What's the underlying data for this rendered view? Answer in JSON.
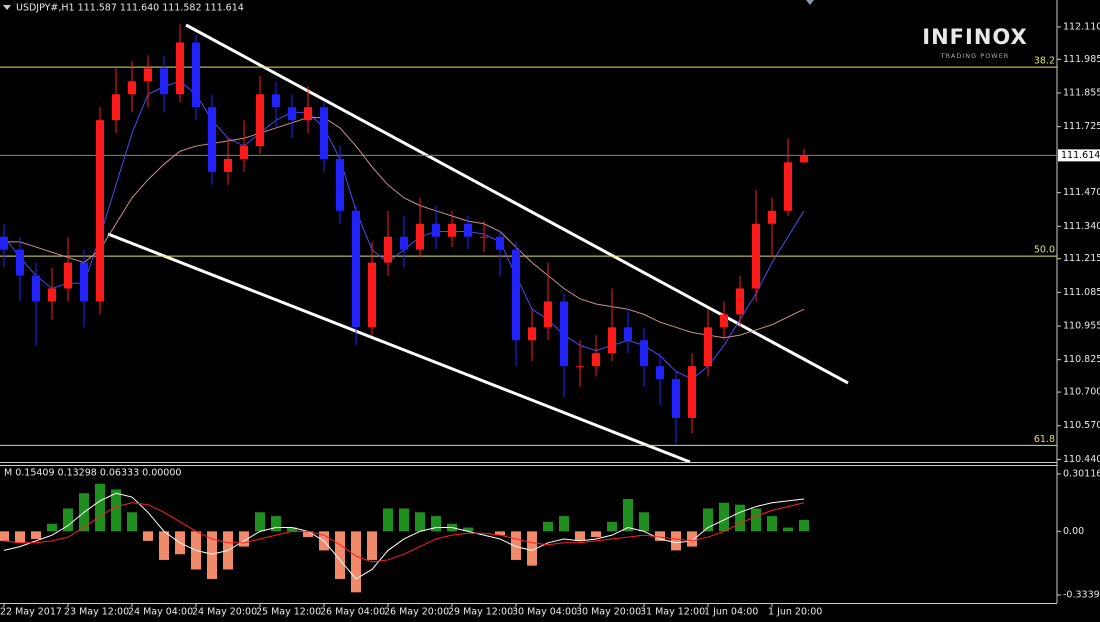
{
  "brand": {
    "name": "INFINOX",
    "tagline": "TRADING POWER"
  },
  "chart_data": [
    {
      "type": "candlestick",
      "title": "USDJPY#,H1 111.587 111.640 111.582 111.614",
      "categories": [
        "22 May 2017",
        null,
        null,
        null,
        "23 May 12:00",
        null,
        null,
        null,
        "24 May 04:00",
        null,
        null,
        null,
        "24 May 20:00",
        null,
        null,
        null,
        "25 May 12:00",
        null,
        null,
        null,
        "26 May 04:00",
        null,
        null,
        null,
        "26 May 20:00",
        null,
        null,
        null,
        "29 May 12:00",
        null,
        null,
        null,
        "30 May 04:00",
        null,
        null,
        null,
        "30 May 20:00",
        null,
        null,
        null,
        "31 May 12:00",
        null,
        null,
        null,
        "1 Jun 04:00",
        null,
        null,
        null,
        "1 Jun 20:00",
        null,
        null
      ],
      "ohlc": [
        [
          111.3,
          111.35,
          111.18,
          111.25
        ],
        [
          111.25,
          111.3,
          111.05,
          111.15
        ],
        [
          111.15,
          111.2,
          110.88,
          111.05
        ],
        [
          111.05,
          111.18,
          110.98,
          111.1
        ],
        [
          111.1,
          111.3,
          111.05,
          111.2
        ],
        [
          111.2,
          111.25,
          110.95,
          111.05
        ],
        [
          111.05,
          111.8,
          111.0,
          111.75
        ],
        [
          111.75,
          111.95,
          111.7,
          111.85
        ],
        [
          111.85,
          111.98,
          111.78,
          111.9
        ],
        [
          111.9,
          112.0,
          111.8,
          111.95
        ],
        [
          111.95,
          112.0,
          111.78,
          111.85
        ],
        [
          111.85,
          112.12,
          111.82,
          112.05
        ],
        [
          112.05,
          112.08,
          111.75,
          111.8
        ],
        [
          111.8,
          111.85,
          111.5,
          111.55
        ],
        [
          111.55,
          111.68,
          111.5,
          111.6
        ],
        [
          111.6,
          111.75,
          111.55,
          111.65
        ],
        [
          111.65,
          111.92,
          111.62,
          111.85
        ],
        [
          111.85,
          111.9,
          111.72,
          111.8
        ],
        [
          111.8,
          111.85,
          111.68,
          111.75
        ],
        [
          111.75,
          111.88,
          111.7,
          111.8
        ],
        [
          111.8,
          111.82,
          111.55,
          111.6
        ],
        [
          111.6,
          111.65,
          111.35,
          111.4
        ],
        [
          111.4,
          111.42,
          110.88,
          110.95
        ],
        [
          110.95,
          111.28,
          110.92,
          111.2
        ],
        [
          111.2,
          111.4,
          111.15,
          111.3
        ],
        [
          111.3,
          111.38,
          111.18,
          111.25
        ],
        [
          111.25,
          111.45,
          111.22,
          111.35
        ],
        [
          111.35,
          111.42,
          111.25,
          111.3
        ],
        [
          111.3,
          111.4,
          111.26,
          111.35
        ],
        [
          111.35,
          111.38,
          111.25,
          111.3
        ],
        [
          111.3,
          111.36,
          111.24,
          111.3
        ],
        [
          111.3,
          111.32,
          111.15,
          111.25
        ],
        [
          111.25,
          111.28,
          110.8,
          110.9
        ],
        [
          110.9,
          111.02,
          110.82,
          110.95
        ],
        [
          110.95,
          111.2,
          110.9,
          111.05
        ],
        [
          111.05,
          111.08,
          110.68,
          110.8
        ],
        [
          110.8,
          110.9,
          110.72,
          110.8
        ],
        [
          110.8,
          110.92,
          110.76,
          110.85
        ],
        [
          110.85,
          111.1,
          110.82,
          110.95
        ],
        [
          110.95,
          111.02,
          110.85,
          110.9
        ],
        [
          110.9,
          110.95,
          110.72,
          110.8
        ],
        [
          110.8,
          110.85,
          110.65,
          110.75
        ],
        [
          110.75,
          110.78,
          110.5,
          110.6
        ],
        [
          110.6,
          110.85,
          110.54,
          110.8
        ],
        [
          110.8,
          111.02,
          110.76,
          110.95
        ],
        [
          110.95,
          111.05,
          110.9,
          111.0
        ],
        [
          111.0,
          111.15,
          110.95,
          111.1
        ],
        [
          111.1,
          111.48,
          111.05,
          111.35
        ],
        [
          111.35,
          111.45,
          111.22,
          111.4
        ],
        [
          111.4,
          111.68,
          111.38,
          111.587
        ],
        [
          111.587,
          111.64,
          111.582,
          111.614
        ]
      ],
      "up_color": "#ff1a1a",
      "down_color": "#2222ff",
      "series": [
        {
          "color": "#4a4aee",
          "values": [
            111.3,
            111.22,
            111.15,
            111.1,
            111.12,
            111.12,
            111.3,
            111.5,
            111.7,
            111.85,
            111.88,
            111.9,
            111.85,
            111.75,
            111.68,
            111.65,
            111.7,
            111.75,
            111.78,
            111.78,
            111.72,
            111.6,
            111.4,
            111.25,
            111.2,
            111.25,
            111.3,
            111.32,
            111.32,
            111.32,
            111.31,
            111.28,
            111.15,
            111.02,
            110.98,
            110.92,
            110.88,
            110.86,
            110.88,
            110.9,
            110.88,
            110.84,
            110.78,
            110.75,
            110.8,
            110.88,
            110.98,
            111.08,
            111.2,
            111.3,
            111.4
          ]
        },
        {
          "color": "#c89090",
          "values": [
            111.28,
            111.28,
            111.26,
            111.24,
            111.22,
            111.2,
            111.25,
            111.35,
            111.45,
            111.52,
            111.58,
            111.63,
            111.65,
            111.66,
            111.67,
            111.68,
            111.7,
            111.72,
            111.74,
            111.76,
            111.76,
            111.72,
            111.65,
            111.57,
            111.5,
            111.45,
            111.42,
            111.4,
            111.38,
            111.36,
            111.35,
            111.32,
            111.26,
            111.2,
            111.15,
            111.1,
            111.06,
            111.04,
            111.03,
            111.02,
            111.0,
            110.97,
            110.95,
            110.93,
            110.92,
            110.91,
            110.92,
            110.94,
            110.96,
            110.99,
            111.02
          ]
        }
      ],
      "levels": [
        {
          "label": "38.2",
          "price": 111.955
        },
        {
          "label": "50.0",
          "price": 111.225
        },
        {
          "label": "61.8",
          "price": 110.494
        }
      ],
      "level_color": "#e0e060",
      "current_price": 111.614,
      "ylim": [
        110.43,
        112.214
      ],
      "yticks": [
        {
          "value": 112.11,
          "label": "112.110"
        },
        111.985,
        111.855,
        111.725,
        {
          "value": 111.47,
          "label": "111.470"
        },
        {
          "value": 111.34,
          "label": "111.340"
        },
        111.215,
        111.085,
        110.955,
        110.825,
        {
          "value": 110.7,
          "label": "110.700"
        },
        {
          "value": 110.57,
          "label": "110.570"
        },
        {
          "value": 110.44,
          "label": "110.440"
        }
      ]
    },
    {
      "type": "macd",
      "title": "M 0.15409 0.13298 0.06333 0.00000",
      "values": [
        -0.05,
        -0.06,
        -0.04,
        0.04,
        0.12,
        0.2,
        0.25,
        0.22,
        0.1,
        -0.05,
        -0.15,
        -0.12,
        -0.2,
        -0.25,
        -0.2,
        -0.08,
        0.1,
        0.08,
        0.02,
        -0.03,
        -0.1,
        -0.25,
        -0.32,
        -0.15,
        0.12,
        0.12,
        0.1,
        0.08,
        0.04,
        0.02,
        0.0,
        -0.02,
        -0.15,
        -0.18,
        0.05,
        0.08,
        -0.05,
        -0.03,
        0.05,
        0.17,
        0.1,
        -0.05,
        -0.1,
        -0.08,
        0.12,
        0.15,
        0.14,
        0.12,
        0.08,
        0.02,
        0.06
      ],
      "pos_color": "#1f8f1f",
      "neg_color": "#f08a6a",
      "series": [
        {
          "color": "#ffffff",
          "values": [
            -0.1,
            -0.08,
            -0.05,
            -0.02,
            0.03,
            0.1,
            0.16,
            0.2,
            0.18,
            0.1,
            0.0,
            -0.06,
            -0.1,
            -0.12,
            -0.1,
            -0.05,
            0.0,
            0.02,
            0.02,
            0.0,
            -0.05,
            -0.15,
            -0.25,
            -0.2,
            -0.1,
            -0.04,
            0.0,
            0.02,
            0.02,
            0.0,
            -0.02,
            -0.04,
            -0.08,
            -0.1,
            -0.06,
            -0.04,
            -0.05,
            -0.04,
            -0.02,
            0.02,
            0.0,
            -0.04,
            -0.06,
            -0.05,
            0.02,
            0.06,
            0.1,
            0.13,
            0.15,
            0.16,
            0.17
          ]
        },
        {
          "color": "#ff2020",
          "values": [
            -0.05,
            -0.06,
            -0.06,
            -0.05,
            -0.03,
            0.02,
            0.08,
            0.13,
            0.15,
            0.14,
            0.1,
            0.05,
            0.0,
            -0.04,
            -0.06,
            -0.06,
            -0.04,
            -0.02,
            0.0,
            0.0,
            -0.02,
            -0.07,
            -0.13,
            -0.16,
            -0.15,
            -0.12,
            -0.08,
            -0.04,
            -0.02,
            -0.01,
            -0.01,
            -0.02,
            -0.04,
            -0.06,
            -0.07,
            -0.06,
            -0.06,
            -0.05,
            -0.04,
            -0.03,
            -0.02,
            -0.03,
            -0.04,
            -0.05,
            -0.03,
            0.0,
            0.04,
            0.08,
            0.11,
            0.13,
            0.15
          ]
        }
      ],
      "ylim": [
        -0.376,
        0.343
      ],
      "yticks": [
        0.30116,
        {
          "value": 0,
          "label": "0.00"
        },
        -0.33392
      ]
    }
  ]
}
